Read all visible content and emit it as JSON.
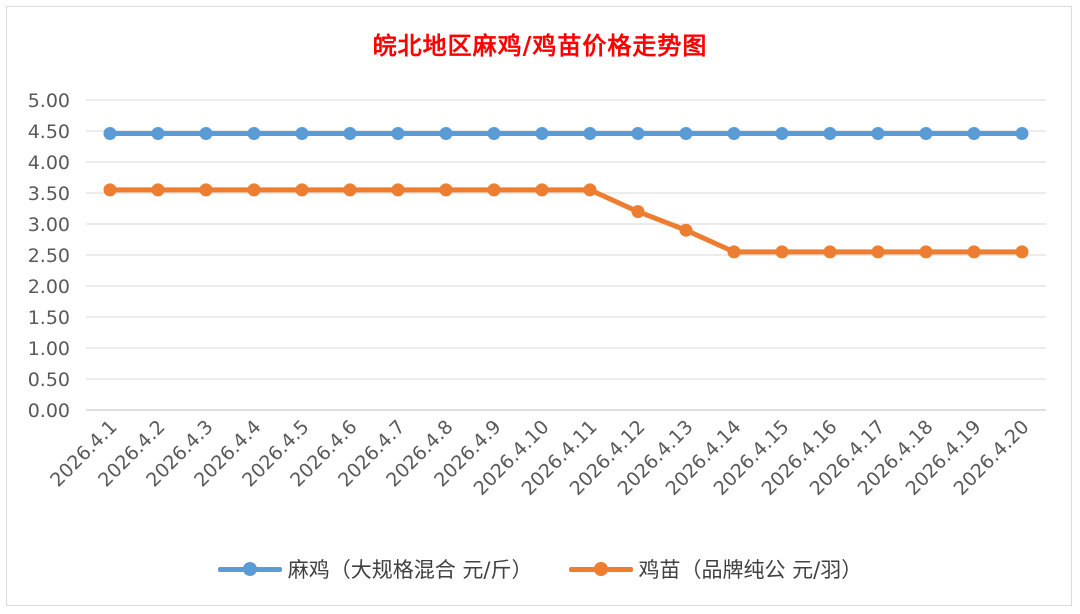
{
  "chart_data": {
    "type": "line",
    "title": "皖北地区麻鸡/鸡苗价格走势图",
    "categories": [
      "2026.4.1",
      "2026.4.2",
      "2026.4.3",
      "2026.4.4",
      "2026.4.5",
      "2026.4.6",
      "2026.4.7",
      "2026.4.8",
      "2026.4.9",
      "2026.4.10",
      "2026.4.11",
      "2026.4.12",
      "2026.4.13",
      "2026.4.14",
      "2026.4.15",
      "2026.4.16",
      "2026.4.17",
      "2026.4.18",
      "2026.4.19",
      "2026.4.20"
    ],
    "ylim": [
      0,
      5
    ],
    "yticks": [
      "0.00",
      "0.50",
      "1.00",
      "1.50",
      "2.00",
      "2.50",
      "3.00",
      "3.50",
      "4.00",
      "4.50",
      "5.00"
    ],
    "grid": true,
    "legend_position": "bottom",
    "series": [
      {
        "name": "麻鸡（大规格混合 元/斤）",
        "color": "#5b9bd5",
        "values": [
          4.46,
          4.46,
          4.46,
          4.46,
          4.46,
          4.46,
          4.46,
          4.46,
          4.46,
          4.46,
          4.46,
          4.46,
          4.46,
          4.46,
          4.46,
          4.46,
          4.46,
          4.46,
          4.46,
          4.46
        ]
      },
      {
        "name": "鸡苗（品牌纯公 元/羽）",
        "color": "#ed7d31",
        "values": [
          3.55,
          3.55,
          3.55,
          3.55,
          3.55,
          3.55,
          3.55,
          3.55,
          3.55,
          3.55,
          3.55,
          3.2,
          2.9,
          2.55,
          2.55,
          2.55,
          2.55,
          2.55,
          2.55,
          2.55
        ]
      }
    ]
  }
}
